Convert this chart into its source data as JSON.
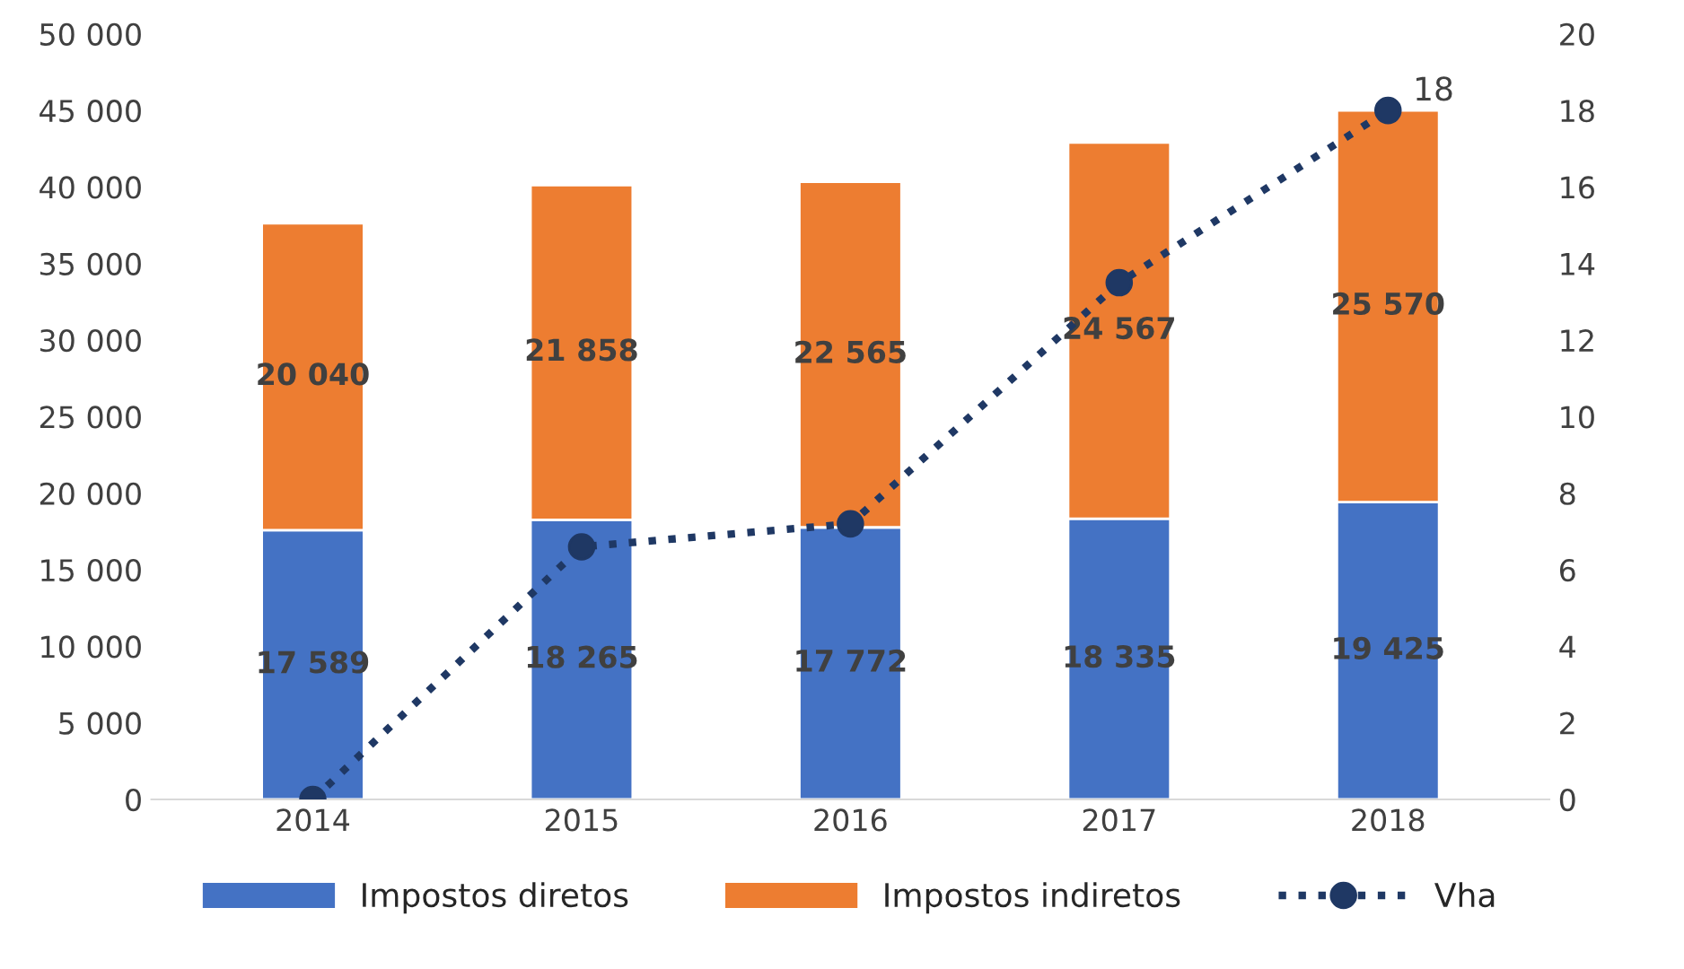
{
  "chart_data": {
    "type": "bar",
    "stacked": true,
    "categories": [
      "2014",
      "2015",
      "2016",
      "2017",
      "2018"
    ],
    "series": [
      {
        "name": "Impostos diretos",
        "color": "#4472c4",
        "values": [
          17589,
          18265,
          17772,
          18335,
          19425
        ],
        "value_labels": [
          "17 589",
          "18 265",
          "17 772",
          "18 335",
          "19 425"
        ]
      },
      {
        "name": "Impostos indiretos",
        "color": "#ed7d31",
        "values": [
          20040,
          21858,
          22565,
          24567,
          25570
        ],
        "value_labels": [
          "20 040",
          "21 858",
          "22 565",
          "24 567",
          "25 570"
        ]
      },
      {
        "name": "Vha",
        "type": "line",
        "axis": "y2",
        "color": "#1f3864",
        "marker": "circle",
        "line_style": "dotted",
        "values": [
          0,
          6.6,
          7.2,
          13.5,
          18
        ],
        "value_labels": [
          null,
          null,
          null,
          null,
          "18"
        ]
      }
    ],
    "ylim": [
      0,
      50000
    ],
    "yticks": [
      0,
      {
        "value": 5000,
        "label": "5 000"
      },
      {
        "value": 10000,
        "label": "10 000"
      },
      {
        "value": 15000,
        "label": "15 000"
      },
      {
        "value": 20000,
        "label": "20 000"
      },
      {
        "value": 25000,
        "label": "25 000"
      },
      {
        "value": 30000,
        "label": "30 000"
      },
      {
        "value": 35000,
        "label": "35 000"
      },
      {
        "value": 40000,
        "label": "40 000"
      },
      {
        "value": 45000,
        "label": "45 000"
      },
      {
        "value": 50000,
        "label": "50 000"
      }
    ],
    "y2lim": [
      0,
      20
    ],
    "y2ticks": [
      0,
      2,
      4,
      6,
      8,
      10,
      12,
      14,
      16,
      18,
      20
    ],
    "grid": false,
    "legend": "bottom"
  }
}
